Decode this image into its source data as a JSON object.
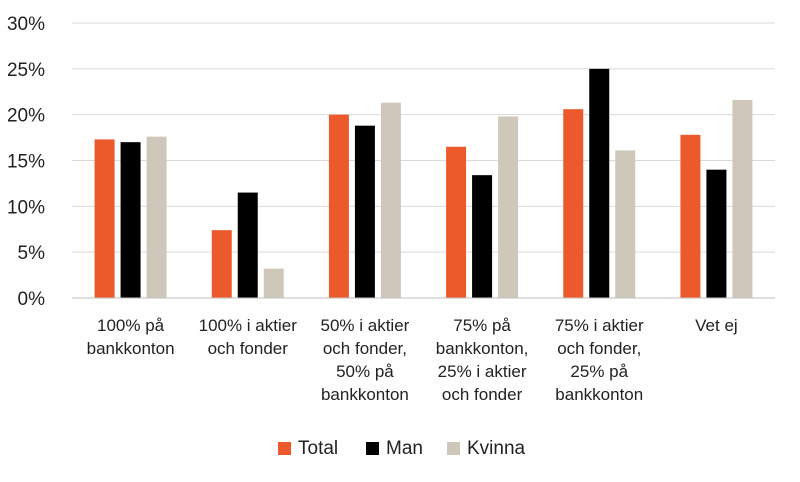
{
  "chart_data": {
    "type": "bar",
    "title": "",
    "xlabel": "",
    "ylabel": "",
    "ylim": [
      0,
      30
    ],
    "yticks": [
      "0%",
      "5%",
      "10%",
      "15%",
      "20%",
      "25%",
      "30%"
    ],
    "grid": true,
    "legend_position": "bottom",
    "categories": [
      [
        "100% på",
        "bankkonton"
      ],
      [
        "100% i aktier",
        "och fonder"
      ],
      [
        "50% i aktier",
        "och fonder,",
        "50% på",
        "bankkonton"
      ],
      [
        "75% på",
        "bankkonton,",
        "25% i aktier",
        "och fonder"
      ],
      [
        "75% i aktier",
        "och fonder,",
        "25% på",
        "bankkonton"
      ],
      [
        "Vet ej"
      ]
    ],
    "series": [
      {
        "name": "Total",
        "color": "#EC5A2B",
        "values": [
          17.3,
          7.4,
          20.0,
          16.5,
          20.6,
          17.8
        ]
      },
      {
        "name": "Man",
        "color": "#000000",
        "values": [
          17.0,
          11.5,
          18.8,
          13.4,
          25.0,
          14.0
        ]
      },
      {
        "name": "Kvinna",
        "color": "#CFC8BA",
        "values": [
          17.6,
          3.2,
          21.3,
          19.8,
          16.1,
          21.6
        ]
      }
    ]
  }
}
